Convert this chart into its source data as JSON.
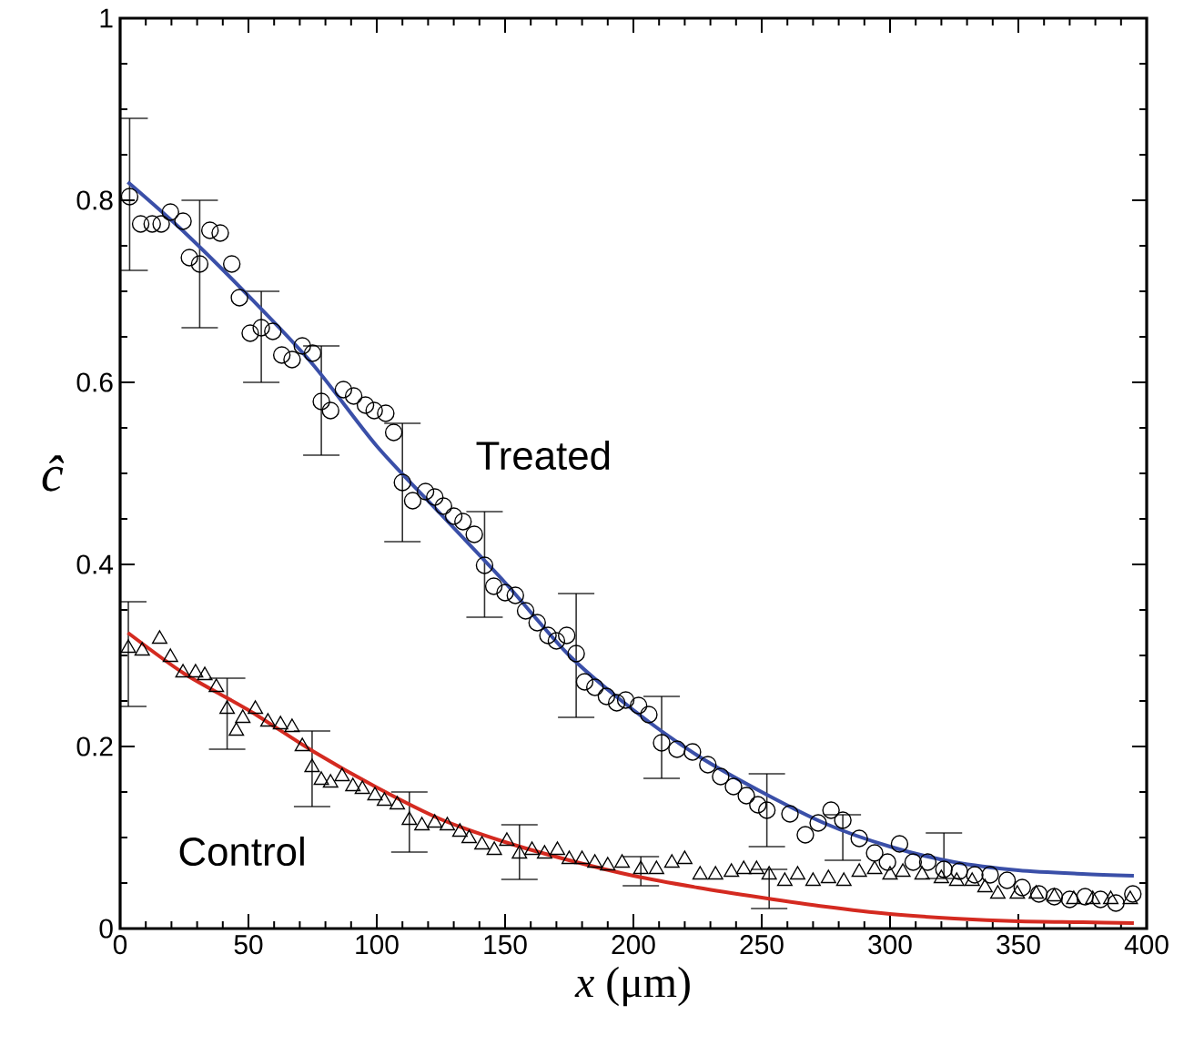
{
  "chart_data": {
    "type": "scatter",
    "xlabel": "*x*  (μm)",
    "ylabel": "ĉ",
    "xlim": [
      0,
      400
    ],
    "ylim": [
      0,
      1
    ],
    "xticks": [
      0,
      50,
      100,
      150,
      200,
      250,
      300,
      350,
      400
    ],
    "yticks": [
      0,
      0.2,
      0.4,
      0.6,
      0.8,
      1
    ],
    "grid": false,
    "series": [
      {
        "name": "Treated",
        "marker": "circle",
        "color": "#000000",
        "x": [
          3.7,
          8,
          12.5,
          16,
          19.6,
          24.5,
          27,
          31,
          35,
          39,
          43.5,
          46.5,
          50.7,
          55,
          59.5,
          63,
          67,
          71,
          75,
          78.4,
          82,
          87,
          91,
          95.6,
          99,
          103.5,
          106.6,
          110,
          114,
          119,
          122.6,
          126,
          130,
          133.6,
          138,
          142,
          145.6,
          150,
          154,
          158,
          162.5,
          166.7,
          170,
          174,
          177.7,
          181,
          185,
          189.5,
          193.5,
          197,
          202,
          206,
          211,
          217,
          223,
          229,
          234,
          239,
          244,
          248.5,
          252,
          261,
          267,
          272,
          277,
          281.6,
          288,
          294,
          299,
          303.7,
          309,
          314.7,
          321,
          327,
          333,
          339,
          345.6,
          351.5,
          358,
          364,
          370,
          376,
          382,
          388,
          394.6
        ],
        "values": [
          0.804,
          0.774,
          0.774,
          0.774,
          0.787,
          0.777,
          0.737,
          0.73,
          0.767,
          0.764,
          0.73,
          0.693,
          0.654,
          0.66,
          0.656,
          0.63,
          0.625,
          0.64,
          0.632,
          0.579,
          0.569,
          0.592,
          0.585,
          0.575,
          0.569,
          0.566,
          0.545,
          0.49,
          0.47,
          0.48,
          0.474,
          0.464,
          0.453,
          0.447,
          0.433,
          0.399,
          0.376,
          0.369,
          0.366,
          0.349,
          0.336,
          0.322,
          0.316,
          0.322,
          0.302,
          0.271,
          0.265,
          0.255,
          0.248,
          0.251,
          0.245,
          0.235,
          0.204,
          0.197,
          0.194,
          0.18,
          0.167,
          0.156,
          0.146,
          0.136,
          0.13,
          0.126,
          0.103,
          0.116,
          0.13,
          0.119,
          0.099,
          0.083,
          0.073,
          0.093,
          0.073,
          0.073,
          0.065,
          0.063,
          0.059,
          0.059,
          0.053,
          0.045,
          0.038,
          0.035,
          0.032,
          0.035,
          0.032,
          0.028,
          0.038
        ],
        "errors": [
          [
            0.723,
            0.89
          ],
          null,
          null,
          null,
          null,
          null,
          null,
          [
            0.66,
            0.8
          ],
          null,
          null,
          null,
          null,
          null,
          [
            0.6,
            0.7
          ],
          null,
          null,
          null,
          null,
          null,
          [
            0.52,
            0.64
          ],
          null,
          null,
          null,
          null,
          null,
          null,
          null,
          [
            0.425,
            0.555
          ],
          null,
          null,
          null,
          null,
          null,
          null,
          null,
          [
            0.342,
            0.458
          ],
          null,
          null,
          null,
          null,
          null,
          null,
          null,
          null,
          [
            0.232,
            0.368
          ],
          null,
          null,
          null,
          null,
          null,
          null,
          null,
          [
            0.165,
            0.255
          ],
          null,
          null,
          null,
          null,
          null,
          null,
          null,
          [
            0.09,
            0.17
          ],
          null,
          null,
          null,
          null,
          [
            0.075,
            0.125
          ],
          null,
          null,
          null,
          null,
          null,
          null,
          [
            0.055,
            0.105
          ],
          null,
          null,
          null,
          null,
          null,
          null,
          null,
          null,
          null,
          null,
          null,
          null
        ]
      },
      {
        "type": "line",
        "color": "#3a4fa8",
        "x": [
          3,
          25,
          50,
          75,
          100,
          125,
          150,
          175,
          200,
          225,
          250,
          275,
          300,
          325,
          350,
          375,
          395
        ],
        "values": [
          0.82,
          0.765,
          0.695,
          0.62,
          0.53,
          0.455,
          0.38,
          0.3,
          0.24,
          0.19,
          0.15,
          0.115,
          0.09,
          0.073,
          0.064,
          0.06,
          0.058
        ]
      },
      {
        "name": "Control",
        "marker": "triangle",
        "color": "#000000",
        "x": [
          3.2,
          8.6,
          15.4,
          19.6,
          24.5,
          29.4,
          33,
          37.5,
          41.7,
          45.3,
          47.8,
          52.7,
          57.6,
          62.5,
          67,
          71,
          74.8,
          78.4,
          82,
          86.5,
          90.7,
          94.4,
          99.3,
          103,
          108,
          112.7,
          117.6,
          122.6,
          127.5,
          132.4,
          136,
          141,
          145.8,
          150.7,
          155.6,
          160.5,
          165.4,
          170.4,
          175,
          180,
          185,
          190,
          195.6,
          202.9,
          209,
          215,
          220,
          226,
          232,
          238.2,
          243,
          248,
          252.9,
          259,
          264,
          270,
          276,
          282,
          288,
          294,
          300,
          305,
          312.5,
          320,
          326,
          332,
          337,
          342,
          349.6,
          357,
          364,
          371.6,
          379,
          386,
          393.6
        ],
        "values": [
          0.308,
          0.305,
          0.318,
          0.298,
          0.281,
          0.281,
          0.278,
          0.265,
          0.241,
          0.217,
          0.231,
          0.241,
          0.227,
          0.224,
          0.221,
          0.2,
          0.177,
          0.163,
          0.16,
          0.167,
          0.156,
          0.153,
          0.146,
          0.14,
          0.136,
          0.119,
          0.113,
          0.116,
          0.113,
          0.106,
          0.099,
          0.092,
          0.086,
          0.096,
          0.082,
          0.086,
          0.082,
          0.086,
          0.076,
          0.076,
          0.072,
          0.069,
          0.072,
          0.065,
          0.065,
          0.072,
          0.076,
          0.059,
          0.059,
          0.062,
          0.065,
          0.065,
          0.059,
          0.052,
          0.059,
          0.052,
          0.055,
          0.052,
          0.062,
          0.065,
          0.059,
          0.062,
          0.059,
          0.055,
          0.052,
          0.052,
          0.045,
          0.038,
          0.038,
          0.038,
          0.035,
          0.032,
          0.032,
          0.032,
          0.032
        ],
        "errors": [
          [
            0.244,
            0.359
          ],
          null,
          null,
          null,
          null,
          null,
          null,
          null,
          [
            0.197,
            0.275
          ],
          null,
          null,
          null,
          null,
          null,
          null,
          null,
          [
            0.134,
            0.217
          ],
          null,
          null,
          null,
          null,
          null,
          null,
          null,
          null,
          [
            0.084,
            0.15
          ],
          null,
          null,
          null,
          null,
          null,
          null,
          null,
          null,
          [
            0.054,
            0.114
          ],
          null,
          null,
          null,
          null,
          null,
          null,
          null,
          null,
          [
            0.047,
            0.079
          ],
          null,
          null,
          null,
          null,
          null,
          null,
          null,
          null,
          [
            0.022,
            0.065
          ],
          null,
          null,
          null,
          null,
          null,
          null,
          null,
          null,
          null,
          null,
          null,
          null,
          null,
          null,
          null,
          null,
          null,
          null,
          null,
          null,
          null,
          null
        ]
      },
      {
        "type": "line",
        "color": "#d42a20",
        "x": [
          3,
          25,
          50,
          75,
          100,
          125,
          150,
          175,
          200,
          225,
          250,
          275,
          300,
          325,
          350,
          375,
          395
        ],
        "values": [
          0.325,
          0.28,
          0.24,
          0.195,
          0.155,
          0.12,
          0.095,
          0.075,
          0.058,
          0.045,
          0.034,
          0.024,
          0.016,
          0.011,
          0.008,
          0.007,
          0.006
        ]
      }
    ]
  }
}
